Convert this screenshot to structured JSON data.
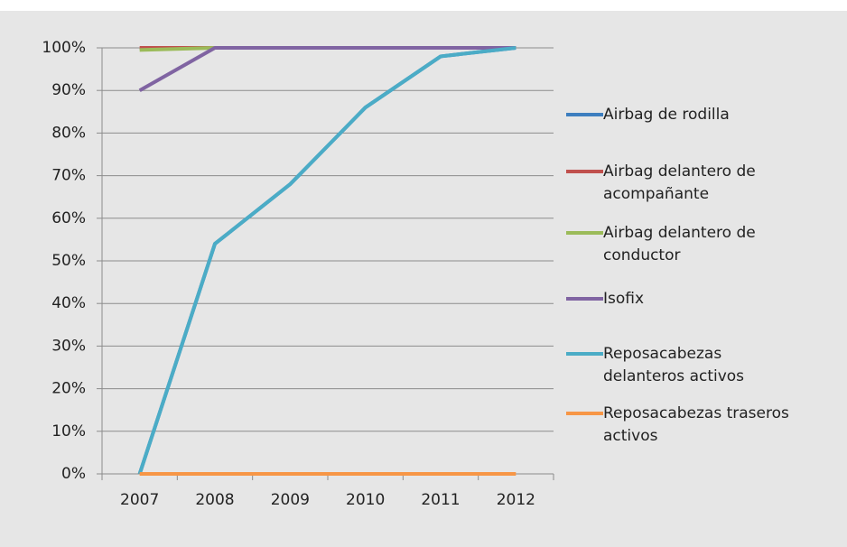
{
  "chart_data": {
    "type": "line",
    "categories": [
      "2007",
      "2008",
      "2009",
      "2010",
      "2011",
      "2012"
    ],
    "series": [
      {
        "name": "Airbag de rodilla",
        "color": "#3d7ebf",
        "values": [
          0,
          54,
          68,
          86,
          98,
          100
        ]
      },
      {
        "name": "Airbag delantero de acompañante",
        "color": "#c0504d",
        "values": [
          100,
          100,
          100,
          100,
          100,
          100
        ]
      },
      {
        "name": "Airbag delantero de conductor",
        "color": "#9bbb59",
        "values": [
          99.5,
          100,
          100,
          100,
          100,
          100
        ]
      },
      {
        "name": "Isofix",
        "color": "#8064a2",
        "values": [
          90,
          100,
          100,
          100,
          100,
          100
        ]
      },
      {
        "name": "Reposacabezas delanteros activos",
        "color": "#4bacc6",
        "values": [
          0,
          54,
          68,
          86,
          98,
          100
        ]
      },
      {
        "name": "Reposacabezas traseros activos",
        "color": "#f79646",
        "values": [
          0,
          0,
          0,
          0,
          0,
          0
        ]
      }
    ],
    "ylim": [
      0,
      100
    ],
    "yticks": [
      {
        "value": 0,
        "label": "0%"
      },
      {
        "value": 10,
        "label": "10%"
      },
      {
        "value": 20,
        "label": "20%"
      },
      {
        "value": 30,
        "label": "30%"
      },
      {
        "value": 40,
        "label": "40%"
      },
      {
        "value": 50,
        "label": "50%"
      },
      {
        "value": 60,
        "label": "60%"
      },
      {
        "value": 70,
        "label": "70%"
      },
      {
        "value": 80,
        "label": "80%"
      },
      {
        "value": 90,
        "label": "90%"
      },
      {
        "value": 100,
        "label": "100%"
      }
    ],
    "grid": true,
    "legend": "right"
  }
}
